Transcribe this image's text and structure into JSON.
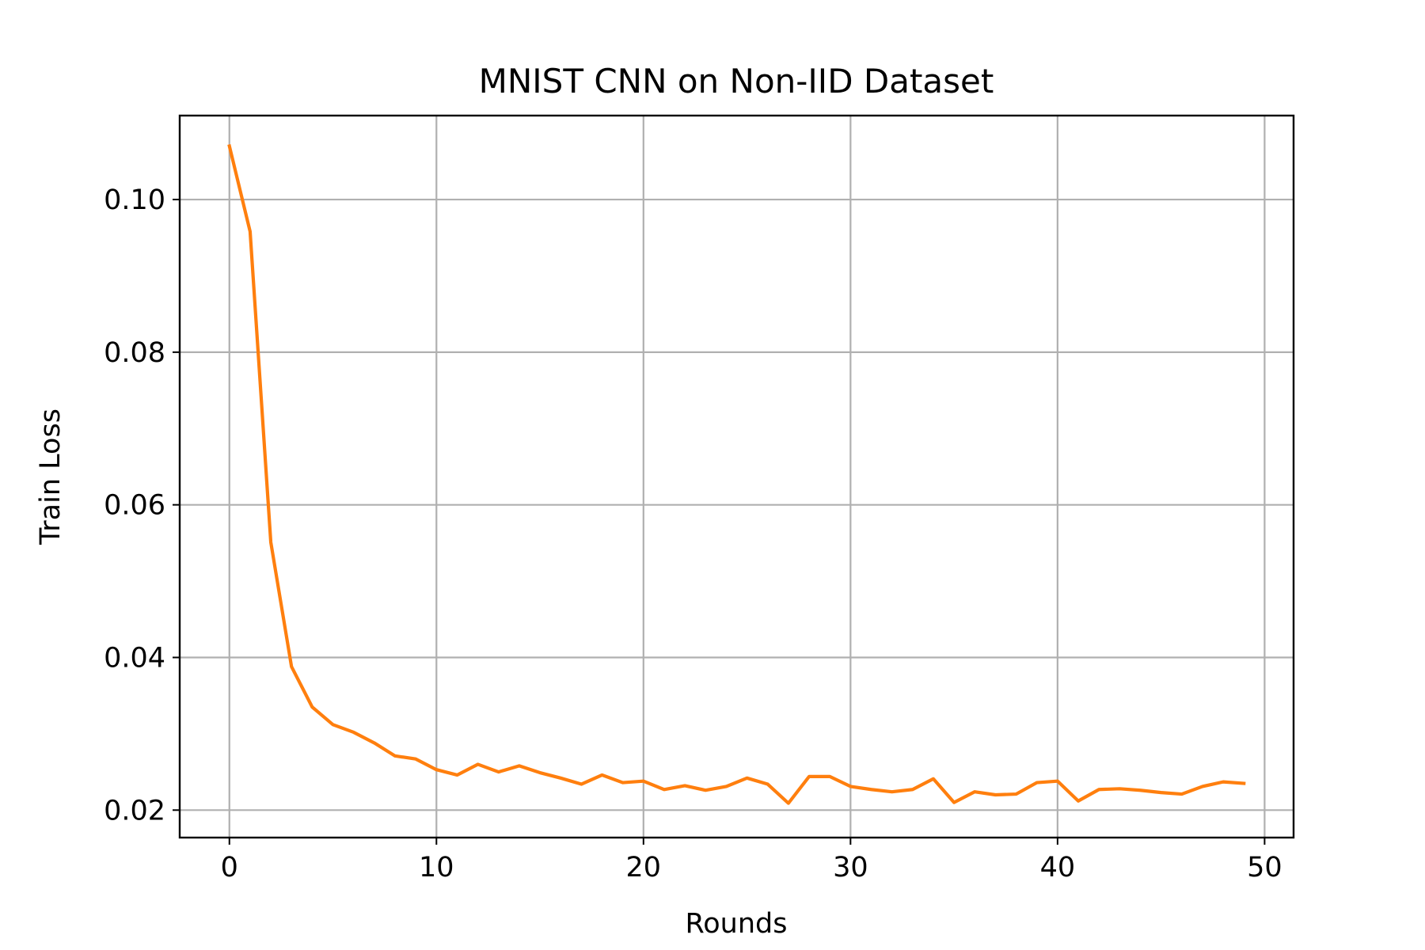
{
  "chart_data": {
    "type": "line",
    "title": "MNIST CNN on Non-IID Dataset",
    "xlabel": "Rounds",
    "ylabel": "Train Loss",
    "xlim": [
      -2.4,
      51.4
    ],
    "ylim": [
      0.0164,
      0.111
    ],
    "x_ticks": [
      0,
      10,
      20,
      30,
      40,
      50
    ],
    "x_tick_labels": [
      "0",
      "10",
      "20",
      "30",
      "40",
      "50"
    ],
    "y_ticks": [
      0.02,
      0.04,
      0.06,
      0.08,
      0.1
    ],
    "y_tick_labels": [
      "0.02",
      "0.04",
      "0.06",
      "0.08",
      "0.10"
    ],
    "grid": true,
    "legend": "none",
    "series": [
      {
        "color": "#ff7f0e",
        "x": [
          0,
          1,
          2,
          3,
          4,
          5,
          6,
          7,
          8,
          9,
          10,
          11,
          12,
          13,
          14,
          15,
          16,
          17,
          18,
          19,
          20,
          21,
          22,
          23,
          24,
          25,
          26,
          27,
          28,
          29,
          30,
          31,
          32,
          33,
          34,
          35,
          36,
          37,
          38,
          39,
          40,
          41,
          42,
          43,
          44,
          45,
          46,
          47,
          48,
          49
        ],
        "values": [
          0.107,
          0.0958,
          0.0551,
          0.0388,
          0.0335,
          0.0312,
          0.0302,
          0.0288,
          0.0271,
          0.0267,
          0.0253,
          0.0246,
          0.026,
          0.025,
          0.0258,
          0.0249,
          0.0242,
          0.0234,
          0.0246,
          0.0236,
          0.0238,
          0.0227,
          0.0232,
          0.0226,
          0.0231,
          0.0242,
          0.0234,
          0.0209,
          0.0244,
          0.0244,
          0.0231,
          0.0227,
          0.0224,
          0.0227,
          0.0241,
          0.021,
          0.0224,
          0.022,
          0.0221,
          0.0236,
          0.0238,
          0.0212,
          0.0227,
          0.0228,
          0.0226,
          0.0223,
          0.0221,
          0.0231,
          0.0237,
          0.0235
        ]
      }
    ]
  }
}
